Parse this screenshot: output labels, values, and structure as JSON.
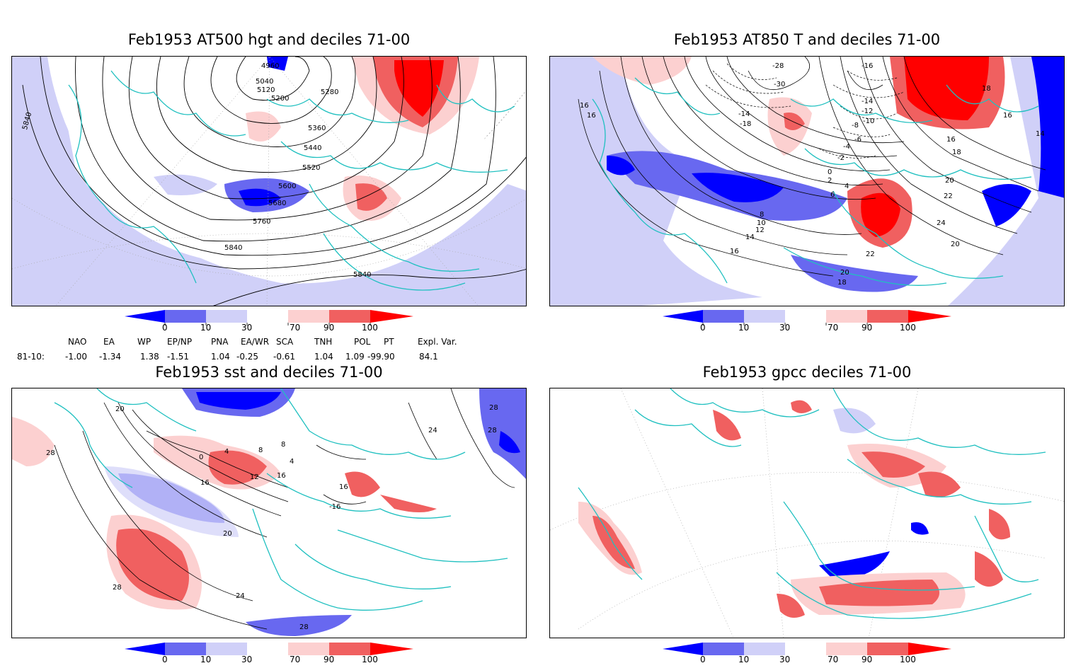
{
  "panels": [
    {
      "title": "Feb1953 AT500 hgt and deciles 71-00",
      "contour_labels": [
        "4960",
        "5040",
        "5120",
        "5200",
        "5280",
        "5360",
        "5440",
        "5520",
        "5600",
        "5680",
        "5760",
        "5840",
        "5840",
        "5840"
      ]
    },
    {
      "title": "Feb1953 AT850 T and deciles 71-00",
      "contour_labels": [
        "-28",
        "-30",
        "-16",
        "-14",
        "-12",
        "-10",
        "-8",
        "-6",
        "-4",
        "-2",
        "-14",
        "-18",
        "16",
        "16",
        "16",
        "18",
        "18",
        "20",
        "22",
        "24",
        "20",
        "22",
        "20",
        "18",
        "16",
        "14",
        "14",
        "12",
        "10",
        "8",
        "6",
        "4",
        "2",
        "0",
        "16"
      ]
    },
    {
      "title": "Feb1953 sst and deciles 71-00",
      "contour_labels": [
        "20",
        "28",
        "28",
        "24",
        "28",
        "0",
        "4",
        "8",
        "12",
        "16",
        "16",
        "4",
        "8",
        "16",
        "-16",
        "20",
        "24",
        "28",
        "28"
      ]
    },
    {
      "title": "Feb1953 gpcc deciles 71-00",
      "contour_labels": []
    }
  ],
  "colorbar": {
    "ticks": [
      "0",
      "10",
      "30",
      "70",
      "90",
      "100"
    ],
    "colors": [
      "#0000ff",
      "#6868f0",
      "#d0d0f8",
      "#ffffff",
      "#fcd0d0",
      "#f06060",
      "#ff0000"
    ]
  },
  "indices": {
    "row_label": "81-10:",
    "names": [
      "NAO",
      "EA",
      "WP",
      "EP/NP",
      "PNA",
      "EA/WR",
      "SCA",
      "TNH",
      "POL",
      "PT",
      "Expl. Var."
    ],
    "values": [
      "-1.00",
      "-1.34",
      "1.38",
      "-1.51",
      "1.04",
      "-0.25",
      "-0.61",
      "1.04",
      "1.09",
      "-99.90",
      "84.1"
    ]
  }
}
